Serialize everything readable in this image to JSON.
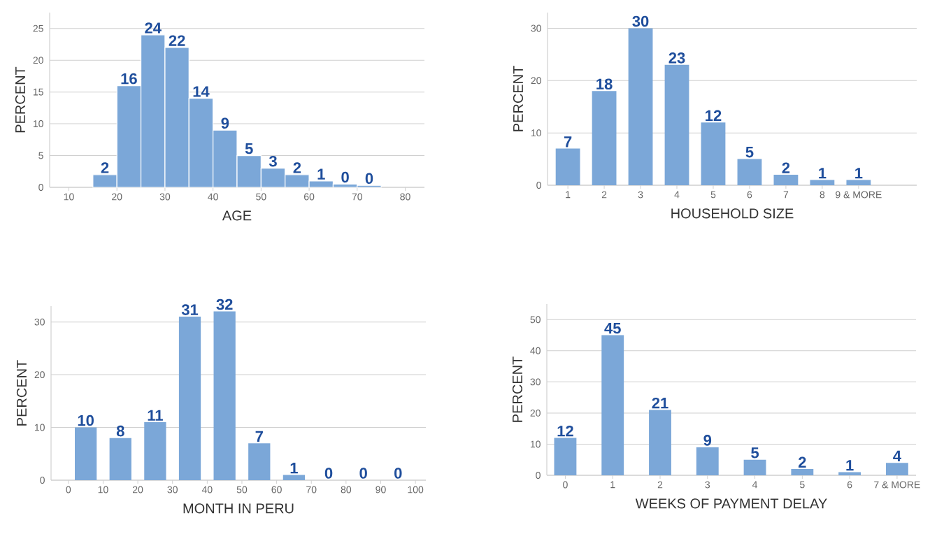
{
  "chart_data": [
    {
      "type": "histogram",
      "xlabel": "AGE",
      "ylabel": "PERCENT",
      "bins": [
        15,
        20,
        25,
        30,
        35,
        40,
        45,
        50,
        55,
        60,
        65,
        70,
        75
      ],
      "values": [
        2,
        16,
        24,
        22,
        14,
        9,
        5,
        3,
        2,
        1,
        0.5,
        0.3
      ],
      "value_labels": [
        "2",
        "16",
        "24",
        "22",
        "14",
        "9",
        "5",
        "3",
        "2",
        "1",
        "0",
        "0"
      ],
      "color": "#7ba7d8",
      "xlim": [
        6,
        84
      ],
      "xticks": [
        10,
        20,
        30,
        40,
        50,
        60,
        70,
        80
      ],
      "ylim": [
        0,
        27.5
      ],
      "yticks": [
        0,
        5,
        10,
        15,
        20,
        25
      ],
      "grid": "y"
    },
    {
      "type": "bar",
      "xlabel": "HOUSEHOLD SIZE",
      "ylabel": "PERCENT",
      "categories": [
        "1",
        "2",
        "3",
        "4",
        "5",
        "6",
        "7",
        "8",
        "9 & MORE"
      ],
      "values": [
        7,
        18,
        30,
        23,
        12,
        5,
        2,
        1,
        1
      ],
      "data_labels": true,
      "color": "#7ba7d8",
      "ylim": [
        0,
        33
      ],
      "yticks": [
        0,
        10,
        20,
        30
      ],
      "grid": "y"
    },
    {
      "type": "bar",
      "xlabel": "MONTH IN PERU",
      "ylabel": "PERCENT",
      "x": [
        5,
        15,
        25,
        35,
        45,
        55,
        65,
        75,
        85,
        95
      ],
      "values": [
        10,
        8,
        11,
        31,
        32,
        7,
        1,
        0,
        0,
        0
      ],
      "data_labels": true,
      "color": "#7ba7d8",
      "xlim": [
        -5,
        103
      ],
      "xticks": [
        0,
        10,
        20,
        30,
        40,
        50,
        60,
        70,
        80,
        90,
        100
      ],
      "ylim": [
        0,
        33
      ],
      "yticks": [
        0,
        10,
        20,
        30
      ],
      "grid": "y"
    },
    {
      "type": "bar",
      "xlabel": "WEEKS OF PAYMENT DELAY",
      "ylabel": "PERCENT",
      "categories": [
        "0",
        "1",
        "2",
        "3",
        "4",
        "5",
        "6",
        "7 & MORE"
      ],
      "values": [
        12,
        45,
        21,
        9,
        5,
        2,
        1,
        4
      ],
      "data_labels": true,
      "color": "#7ba7d8",
      "ylim": [
        0,
        55
      ],
      "yticks": [
        0,
        10,
        20,
        30,
        40,
        50
      ],
      "grid": "y"
    }
  ]
}
